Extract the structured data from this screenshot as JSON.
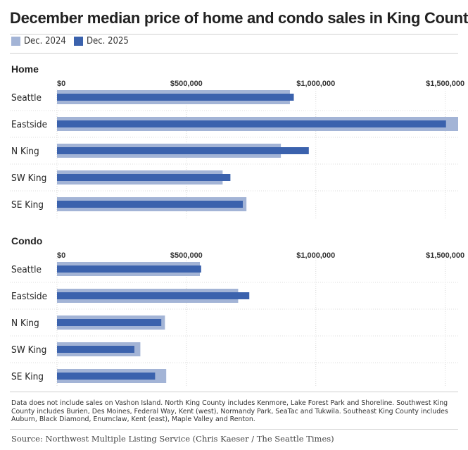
{
  "title": "December median price of home and condo sales in King County",
  "legend": [
    {
      "label": "Dec. 2024",
      "color": "#a3b4d6"
    },
    {
      "label": "Dec. 2025",
      "color": "#3b62ad"
    }
  ],
  "chart_data": [
    {
      "type": "bar",
      "orientation": "horizontal",
      "title": "Home",
      "categories": [
        "Seattle",
        "Eastside",
        "N King",
        "SW King",
        "SE King"
      ],
      "series": [
        {
          "name": "Dec. 2024",
          "color": "#a3b4d6",
          "values": [
            900000,
            1550000,
            865000,
            640000,
            732000
          ]
        },
        {
          "name": "Dec. 2025",
          "color": "#3b62ad",
          "values": [
            915000,
            1503000,
            973000,
            670000,
            718000
          ]
        }
      ],
      "xlim": [
        0,
        1550000
      ],
      "ticks": [
        0,
        500000,
        1000000,
        1500000
      ],
      "tick_labels": [
        "$0",
        "$500,000",
        "$1,000,000",
        "$1,500,000"
      ]
    },
    {
      "type": "bar",
      "orientation": "horizontal",
      "title": "Condo",
      "categories": [
        "Seattle",
        "Eastside",
        "N King",
        "SW King",
        "SE King"
      ],
      "series": [
        {
          "name": "Dec. 2024",
          "color": "#a3b4d6",
          "values": [
            552000,
            700000,
            417000,
            322000,
            422000
          ]
        },
        {
          "name": "Dec. 2025",
          "color": "#3b62ad",
          "values": [
            557000,
            743000,
            403000,
            299000,
            379000
          ]
        }
      ],
      "xlim": [
        0,
        1550000
      ],
      "ticks": [
        0,
        500000,
        1000000,
        1500000
      ],
      "tick_labels": [
        "$0",
        "$500,000",
        "$1,000,000",
        "$1,500,000"
      ]
    }
  ],
  "footnote": "Data does not include sales on Vashon Island. North King County includes Kenmore, Lake Forest Park and Shoreline. Southwest King County includes Burien, Des Moines, Federal Way, Kent (west), Normandy Park, SeaTac and Tukwila. Southeast King County includes Auburn, Black Diamond, Enumclaw, Kent (east), Maple Valley and Renton.",
  "source": "Source: Northwest Multiple Listing Service (Chris Kaeser / The Seattle Times)"
}
